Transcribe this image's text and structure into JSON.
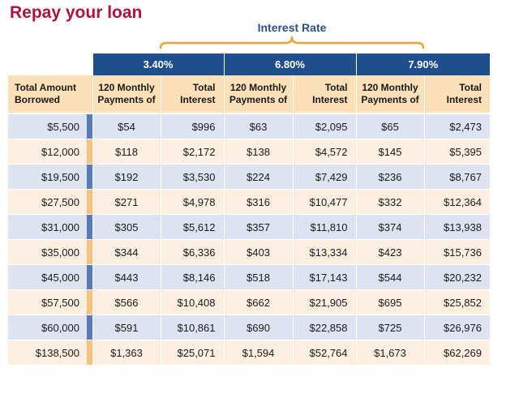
{
  "page": {
    "title": "Repay your loan",
    "rate_caption": "Interest Rate"
  },
  "colors": {
    "title": "#b0123f",
    "header_blue": "#1f4e8c",
    "header_tan": "#fbe0b8",
    "row_blue": "#dde3f0",
    "row_tan": "#fdf0e0",
    "brace_orange": "#f0a030",
    "caption_blue": "#2a4f8a"
  },
  "table": {
    "rates": [
      "3.40%",
      "6.80%",
      "7.90%"
    ],
    "header": {
      "amount": "Total Amount Borrowed",
      "payments": "120 Monthly Payments of",
      "interest": "Total Interest"
    },
    "rows": [
      {
        "amount": "$5,500",
        "cells": [
          "$54",
          "$996",
          "$63",
          "$2,095",
          "$65",
          "$2,473"
        ]
      },
      {
        "amount": "$12,000",
        "cells": [
          "$118",
          "$2,172",
          "$138",
          "$4,572",
          "$145",
          "$5,395"
        ]
      },
      {
        "amount": "$19,500",
        "cells": [
          "$192",
          "$3,530",
          "$224",
          "$7,429",
          "$236",
          "$8,767"
        ]
      },
      {
        "amount": "$27,500",
        "cells": [
          "$271",
          "$4,978",
          "$316",
          "$10,477",
          "$332",
          "$12,364"
        ]
      },
      {
        "amount": "$31,000",
        "cells": [
          "$305",
          "$5,612",
          "$357",
          "$11,810",
          "$374",
          "$13,938"
        ]
      },
      {
        "amount": "$35,000",
        "cells": [
          "$344",
          "$6,336",
          "$403",
          "$13,334",
          "$423",
          "$15,736"
        ]
      },
      {
        "amount": "$45,000",
        "cells": [
          "$443",
          "$8,146",
          "$518",
          "$17,143",
          "$544",
          "$20,232"
        ]
      },
      {
        "amount": "$57,500",
        "cells": [
          "$566",
          "$10,408",
          "$662",
          "$21,905",
          "$695",
          "$25,852"
        ]
      },
      {
        "amount": "$60,000",
        "cells": [
          "$591",
          "$10,861",
          "$690",
          "$22,858",
          "$725",
          "$26,976"
        ]
      },
      {
        "amount": "$138,500",
        "cells": [
          "$1,363",
          "$25,071",
          "$1,594",
          "$52,764",
          "$1,673",
          "$62,269"
        ]
      }
    ]
  }
}
